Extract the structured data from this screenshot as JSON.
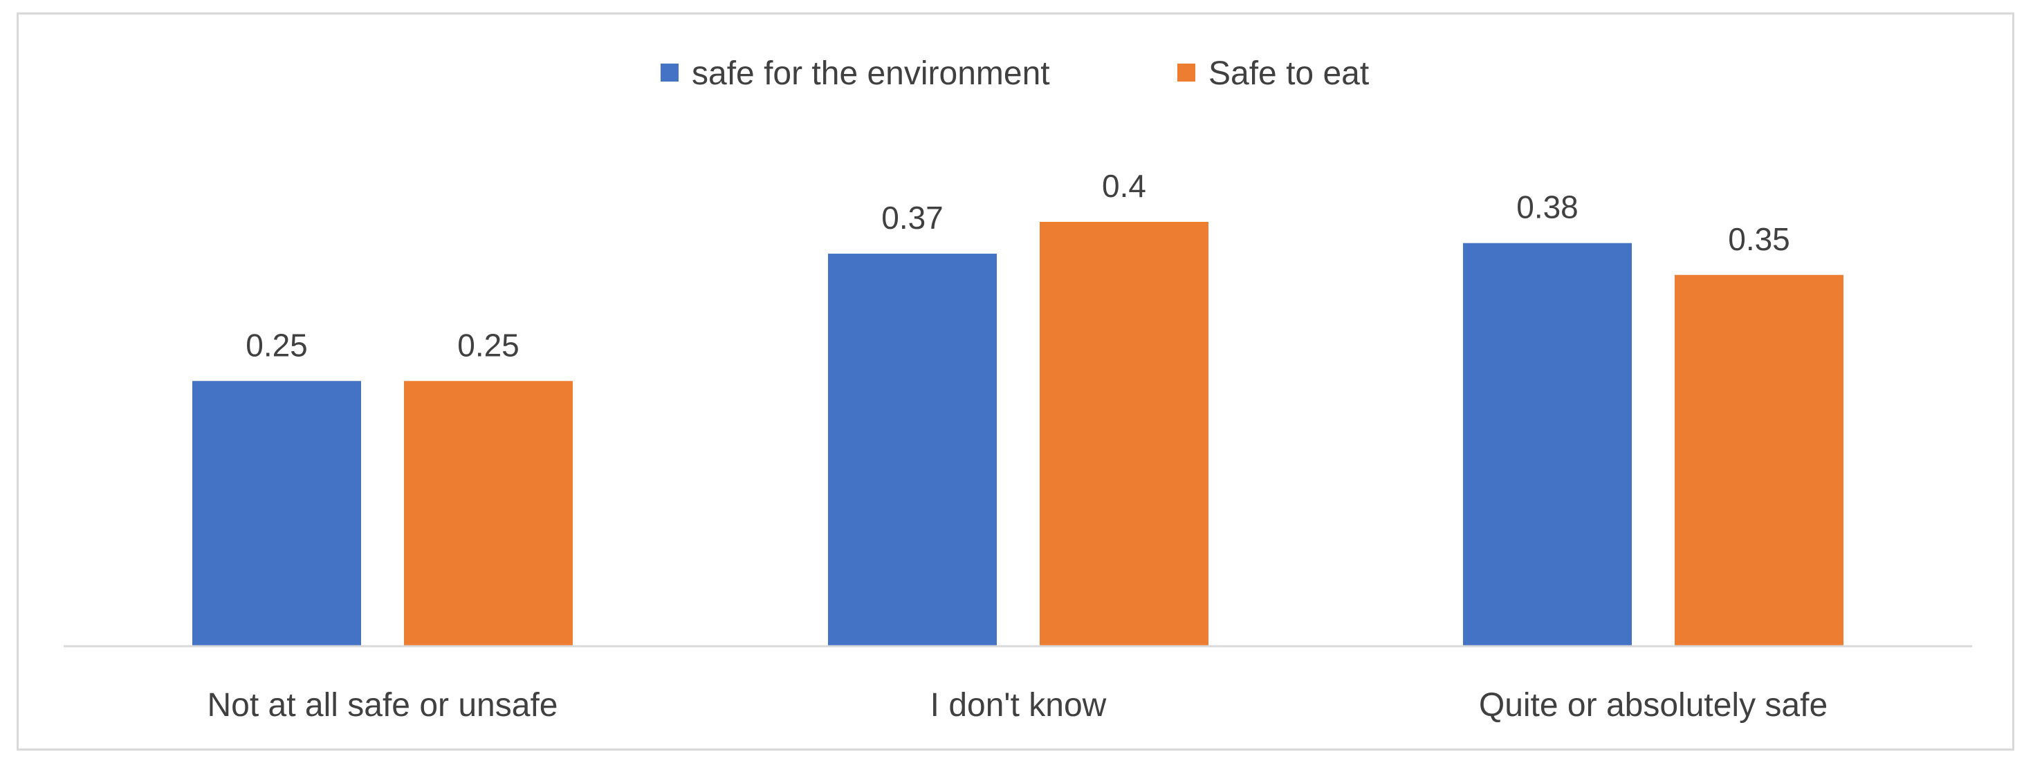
{
  "chart_data": {
    "type": "bar",
    "categories": [
      "Not at all safe or unsafe",
      "I don't know",
      "Quite or absolutely safe"
    ],
    "series": [
      {
        "name": "safe for the environment",
        "values": [
          0.25,
          0.37,
          0.38
        ],
        "labels": [
          "0.25",
          "0.37",
          "0.38"
        ],
        "color": "#4472C4"
      },
      {
        "name": "Safe to eat",
        "values": [
          0.25,
          0.4,
          0.35
        ],
        "labels": [
          "0.25",
          "0.4",
          "0.35"
        ],
        "color": "#ED7D31"
      }
    ],
    "title": "",
    "xlabel": "",
    "ylabel": "",
    "ylim": [
      0,
      0.5
    ],
    "legend_position": "top-center",
    "grid": false,
    "axis_color": "#d9d9d9"
  }
}
